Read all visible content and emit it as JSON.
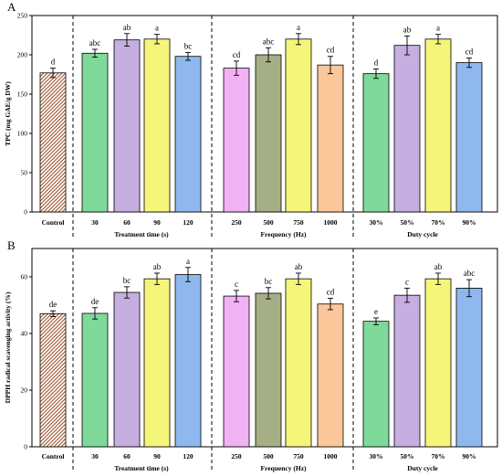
{
  "chart_data": [
    {
      "type": "bar",
      "panel": "A",
      "ylabel": "TPC (mg GAE/g DW)",
      "ylim": [
        0,
        250
      ],
      "yticks": [
        0,
        50,
        100,
        150,
        200,
        250
      ],
      "groups": [
        {
          "label": "",
          "categories": [
            "Control"
          ],
          "values": [
            177
          ],
          "errors": [
            6
          ],
          "letters": [
            "d"
          ],
          "colors": [
            "#c98a5e"
          ],
          "hatched": [
            true
          ]
        },
        {
          "label": "Treatment time (s)",
          "categories": [
            "30",
            "60",
            "90",
            "120"
          ],
          "values": [
            202,
            219,
            220,
            198
          ],
          "errors": [
            5,
            8,
            6,
            5
          ],
          "letters": [
            "abc",
            "ab",
            "a",
            "bc"
          ],
          "colors": [
            "#7fd99a",
            "#c6aee0",
            "#f5f57a",
            "#8fb8ee"
          ],
          "hatched": [
            false,
            false,
            false,
            false
          ]
        },
        {
          "label": "Frequency (Hz)",
          "categories": [
            "250",
            "500",
            "750",
            "1000"
          ],
          "values": [
            183,
            200,
            220,
            187
          ],
          "errors": [
            9,
            9,
            7,
            11
          ],
          "letters": [
            "cd",
            "abc",
            "a",
            "cd"
          ],
          "colors": [
            "#f2b0f5",
            "#a6ae86",
            "#f5f57a",
            "#fbc79a"
          ],
          "hatched": [
            false,
            false,
            false,
            false
          ]
        },
        {
          "label": "Duty cycle",
          "categories": [
            "30%",
            "50%",
            "70%",
            "90%"
          ],
          "values": [
            176,
            212,
            220,
            190
          ],
          "errors": [
            6,
            12,
            6,
            6
          ],
          "letters": [
            "d",
            "ab",
            "a",
            "cd"
          ],
          "colors": [
            "#7fd99a",
            "#c6aee0",
            "#f5f57a",
            "#8fb8ee"
          ],
          "hatched": [
            false,
            false,
            false,
            false
          ]
        }
      ]
    },
    {
      "type": "bar",
      "panel": "B",
      "ylabel": "DPPH radical scavenging activity (%)",
      "ylim": [
        0,
        70
      ],
      "yticks": [
        0,
        20,
        40,
        60
      ],
      "groups": [
        {
          "label": "",
          "categories": [
            "Control"
          ],
          "values": [
            47
          ],
          "errors": [
            1
          ],
          "letters": [
            "de"
          ],
          "colors": [
            "#c98a5e"
          ],
          "hatched": [
            true
          ]
        },
        {
          "label": "Treatment time (s)",
          "categories": [
            "30",
            "60",
            "90",
            "120"
          ],
          "values": [
            47.1,
            54.5,
            59.3,
            60.8
          ],
          "errors": [
            2,
            2,
            2,
            2.5
          ],
          "letters": [
            "de",
            "bc",
            "ab",
            "a"
          ],
          "colors": [
            "#7fd99a",
            "#c6aee0",
            "#f5f57a",
            "#8fb8ee"
          ],
          "hatched": [
            false,
            false,
            false,
            false
          ]
        },
        {
          "label": "Frequency (Hz)",
          "categories": [
            "250",
            "500",
            "750",
            "1000"
          ],
          "values": [
            53.2,
            54.2,
            59.3,
            50.4
          ],
          "errors": [
            2,
            2,
            2,
            2
          ],
          "letters": [
            "c",
            "bc",
            "ab",
            "cd"
          ],
          "colors": [
            "#f2b0f5",
            "#a6ae86",
            "#f5f57a",
            "#fbc79a"
          ],
          "hatched": [
            false,
            false,
            false,
            false
          ]
        },
        {
          "label": "Duty cycle",
          "categories": [
            "30%",
            "50%",
            "70%",
            "90%"
          ],
          "values": [
            44.3,
            53.5,
            59.3,
            56
          ],
          "errors": [
            1.2,
            2.5,
            2,
            3
          ],
          "letters": [
            "e",
            "c",
            "ab",
            "abc"
          ],
          "colors": [
            "#7fd99a",
            "#c6aee0",
            "#f5f57a",
            "#8fb8ee"
          ],
          "hatched": [
            false,
            false,
            false,
            false
          ]
        }
      ]
    }
  ]
}
